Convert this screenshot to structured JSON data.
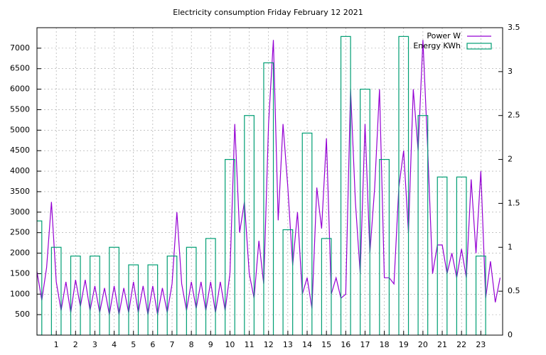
{
  "chart_data": {
    "type": "line",
    "title": "Electricity consumption Friday February 12 2021",
    "x": [
      0,
      0.25,
      0.5,
      0.75,
      1,
      1.25,
      1.5,
      1.75,
      2,
      2.25,
      2.5,
      2.75,
      3,
      3.25,
      3.5,
      3.75,
      4,
      4.25,
      4.5,
      4.75,
      5,
      5.25,
      5.5,
      5.75,
      6,
      6.25,
      6.5,
      6.75,
      7,
      7.25,
      7.5,
      7.75,
      8,
      8.25,
      8.5,
      8.75,
      9,
      9.25,
      9.5,
      9.75,
      10,
      10.25,
      10.5,
      10.75,
      11,
      11.25,
      11.5,
      11.75,
      12,
      12.25,
      12.5,
      12.75,
      13,
      13.25,
      13.5,
      13.75,
      14,
      14.25,
      14.5,
      14.75,
      15,
      15.25,
      15.5,
      15.75,
      16,
      16.25,
      16.5,
      16.75,
      17,
      17.25,
      17.5,
      17.75,
      18,
      18.25,
      18.5,
      18.75,
      19,
      19.25,
      19.5,
      19.75,
      20,
      20.25,
      20.5,
      20.75,
      21,
      21.25,
      21.5,
      21.75,
      22,
      22.25,
      22.5,
      22.75,
      23,
      23.25,
      23.5,
      23.75,
      24
    ],
    "series": [
      {
        "name": "Power W",
        "color": "#9400d3",
        "values": [
          1550,
          850,
          1650,
          3250,
          1300,
          600,
          1300,
          550,
          1350,
          700,
          1350,
          600,
          1200,
          550,
          1150,
          500,
          1200,
          500,
          1150,
          550,
          1300,
          550,
          1200,
          500,
          1200,
          500,
          1150,
          550,
          1250,
          3000,
          1250,
          600,
          1300,
          650,
          1300,
          600,
          1300,
          550,
          1300,
          600,
          1500,
          5150,
          2500,
          3250,
          1500,
          900,
          2300,
          1250,
          5150,
          7200,
          2800,
          5150,
          3600,
          1700,
          3000,
          1000,
          1400,
          650,
          3600,
          2600,
          4800,
          1000,
          1400,
          900,
          1000,
          6000,
          3250,
          1500,
          5150,
          2000,
          3600,
          6000,
          1400,
          1400,
          1250,
          3600,
          4500,
          2500,
          6000,
          4500,
          7200,
          4500,
          1500,
          2200,
          2200,
          1500,
          2000,
          1400,
          2100,
          1400,
          3800,
          2000,
          4000,
          900,
          1800,
          800,
          1400
        ]
      },
      {
        "name": "Energy KWh",
        "color": "#009e73",
        "axis": "y2",
        "type": "bar",
        "x": [
          0,
          1,
          2,
          3,
          4,
          5,
          6,
          7,
          8,
          9,
          10,
          11,
          12,
          13,
          14,
          15,
          16,
          17,
          18,
          19,
          20,
          21,
          22,
          23
        ],
        "values": [
          1.3,
          1.0,
          0.9,
          0.9,
          1.0,
          0.8,
          0.8,
          0.9,
          1.0,
          1.1,
          2.0,
          2.5,
          3.1,
          1.2,
          2.3,
          1.1,
          3.4,
          2.8,
          2.0,
          3.4,
          2.5,
          1.8,
          1.8,
          0.9
        ]
      }
    ],
    "xlim": [
      0,
      24.13
    ],
    "xticks": [
      1,
      2,
      3,
      4,
      5,
      6,
      7,
      8,
      9,
      10,
      11,
      12,
      13,
      14,
      15,
      16,
      17,
      18,
      19,
      20,
      21,
      22,
      23
    ],
    "ylim": [
      0,
      7500
    ],
    "yticks": [
      500,
      1000,
      1500,
      2000,
      2500,
      3000,
      3500,
      4000,
      4500,
      5000,
      5500,
      6000,
      6500,
      7000
    ],
    "y2lim": [
      0,
      3.5
    ],
    "y2ticks": [
      0,
      0.5,
      1,
      1.5,
      2,
      2.5,
      3,
      3.5
    ],
    "grid": true,
    "legend": "top-right"
  }
}
